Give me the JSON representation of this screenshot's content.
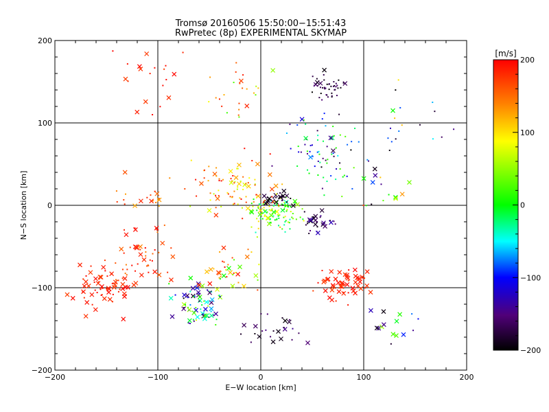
{
  "chart_data": {
    "type": "scatter",
    "title": "Tromsø 20160506 15:50:00−15:51:43",
    "subtitle": "RwPretec (8p) EXPERIMENTAL SKYMAP",
    "xlabel": "E−W location [km]",
    "ylabel": "N−S location [km]",
    "xlim": [
      -200,
      200
    ],
    "ylim": [
      -200,
      200
    ],
    "x_ticks": [
      "−200",
      "−100",
      "0",
      "100",
      "200"
    ],
    "y_ticks": [
      "−200",
      "−100",
      "0",
      "100",
      "200"
    ],
    "grid": true,
    "colorbar": {
      "unit": "[m/s]",
      "range": [
        -200,
        200
      ],
      "ticks": [
        "200",
        "100",
        "0",
        "−100",
        "−200"
      ],
      "colormap": [
        "#000000",
        "#500078",
        "#0000ff",
        "#00ffff",
        "#00ff00",
        "#ffff00",
        "#ff8000",
        "#ff0000"
      ]
    },
    "markers": {
      "cross": "meteor detection (large marker)",
      "dot": "meteor detection (small marker)"
    },
    "clusters": [
      {
        "cx": 65,
        "cy": 145,
        "sx": 12,
        "sy": 10,
        "n": 45,
        "vmin": -200,
        "vmax": -150,
        "cross": 0.1
      },
      {
        "cx": 130,
        "cy": -80,
        "sx": 10,
        "sy": 12,
        "n": 0,
        "vmin": 0,
        "vmax": 0,
        "cross": 0
      },
      {
        "cx": 15,
        "cy": -10,
        "sx": 18,
        "sy": 15,
        "n": 110,
        "vmin": -40,
        "vmax": 120,
        "cross": 0.15
      },
      {
        "cx": 18,
        "cy": 8,
        "sx": 10,
        "sy": 6,
        "n": 25,
        "vmin": -200,
        "vmax": -160,
        "cross": 0.4
      },
      {
        "cx": 55,
        "cy": -20,
        "sx": 10,
        "sy": 8,
        "n": 30,
        "vmin": -200,
        "vmax": -120,
        "cross": 0.3
      },
      {
        "cx": 60,
        "cy": 60,
        "sx": 30,
        "sy": 35,
        "n": 80,
        "vmin": -200,
        "vmax": 40,
        "cross": 0.1
      },
      {
        "cx": -25,
        "cy": 20,
        "sx": 30,
        "sy": 25,
        "n": 90,
        "vmin": 60,
        "vmax": 200,
        "cross": 0.2
      },
      {
        "cx": -150,
        "cy": -100,
        "sx": 25,
        "sy": 20,
        "n": 70,
        "vmin": 170,
        "vmax": 200,
        "cross": 0.6
      },
      {
        "cx": -110,
        "cy": -60,
        "sx": 22,
        "sy": 25,
        "n": 50,
        "vmin": 140,
        "vmax": 200,
        "cross": 0.3
      },
      {
        "cx": 80,
        "cy": -95,
        "sx": 20,
        "sy": 15,
        "n": 60,
        "vmin": 170,
        "vmax": 200,
        "cross": 0.6
      },
      {
        "cx": -60,
        "cy": -120,
        "sx": 18,
        "sy": 20,
        "n": 70,
        "vmin": -200,
        "vmax": 80,
        "cross": 0.5
      },
      {
        "cx": -30,
        "cy": -80,
        "sx": 20,
        "sy": 20,
        "n": 40,
        "vmin": 0,
        "vmax": 200,
        "cross": 0.3
      },
      {
        "cx": -100,
        "cy": 150,
        "sx": 25,
        "sy": 30,
        "n": 20,
        "vmin": 170,
        "vmax": 200,
        "cross": 0.5
      },
      {
        "cx": -20,
        "cy": 140,
        "sx": 20,
        "sy": 25,
        "n": 25,
        "vmin": 20,
        "vmax": 200,
        "cross": 0.3
      },
      {
        "cx": 120,
        "cy": -150,
        "sx": 20,
        "sy": 20,
        "n": 15,
        "vmin": -200,
        "vmax": 60,
        "cross": 0.6
      },
      {
        "cx": 10,
        "cy": -150,
        "sx": 25,
        "sy": 15,
        "n": 25,
        "vmin": -200,
        "vmax": -140,
        "cross": 0.5
      },
      {
        "cx": 150,
        "cy": 100,
        "sx": 35,
        "sy": 60,
        "n": 20,
        "vmin": -200,
        "vmax": 120,
        "cross": 0.2
      },
      {
        "cx": 120,
        "cy": 20,
        "sx": 20,
        "sy": 20,
        "n": 15,
        "vmin": -200,
        "vmax": 200,
        "cross": 0.2
      },
      {
        "cx": -120,
        "cy": 10,
        "sx": 20,
        "sy": 15,
        "n": 20,
        "vmin": 120,
        "vmax": 200,
        "cross": 0.3
      }
    ]
  }
}
